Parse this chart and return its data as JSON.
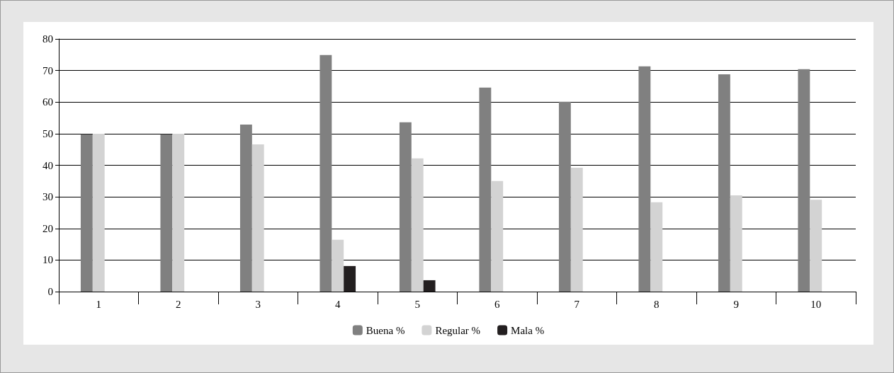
{
  "chart_data": {
    "type": "bar",
    "categories": [
      "1",
      "2",
      "3",
      "4",
      "5",
      "6",
      "7",
      "8",
      "9",
      "10"
    ],
    "series": [
      {
        "name": "Buena %",
        "color": "#808080",
        "values": [
          49.8,
          49.8,
          52.9,
          74.9,
          53.6,
          64.6,
          60.1,
          71.3,
          68.8,
          70.4
        ]
      },
      {
        "name": "Regular %",
        "color": "#d3d3d3",
        "values": [
          50.0,
          50.0,
          46.6,
          16.4,
          42.2,
          35.0,
          39.2,
          28.3,
          30.5,
          29.1
        ]
      },
      {
        "name": "Mala %",
        "color": "#231f20",
        "values": [
          0,
          0,
          0,
          8.1,
          3.6,
          0,
          0,
          0,
          0,
          0
        ]
      }
    ],
    "ylim": [
      0,
      80
    ],
    "yticks": [
      0,
      10,
      20,
      30,
      40,
      50,
      60,
      70,
      80
    ],
    "grid": "y",
    "legend": "bottom"
  }
}
